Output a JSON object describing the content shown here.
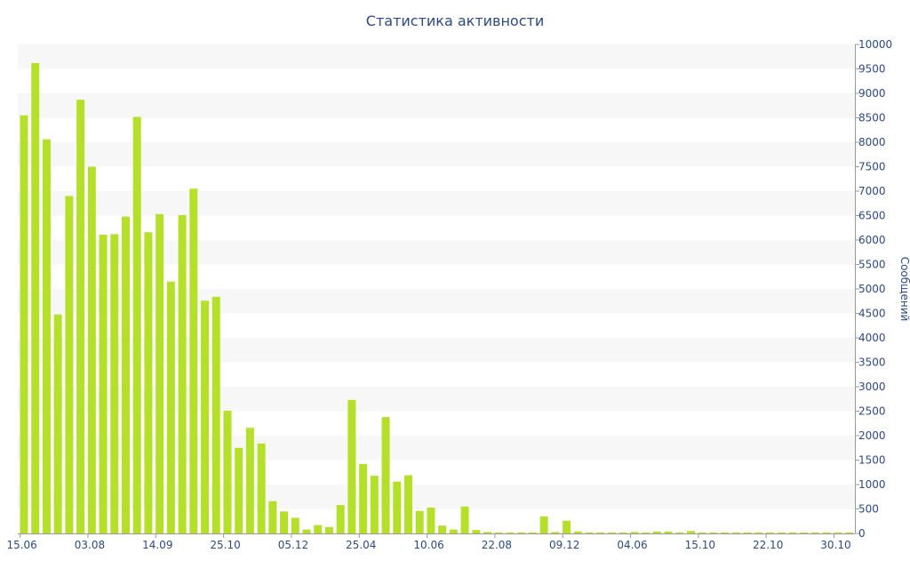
{
  "chart_data": {
    "type": "bar",
    "title": "Статистика активности",
    "ylabel": "Сообщений",
    "ylim": [
      0,
      10000
    ],
    "y_ticks": [
      0,
      500,
      1000,
      1500,
      2000,
      2500,
      3000,
      3500,
      4000,
      4500,
      5000,
      5500,
      6000,
      6500,
      7000,
      7500,
      8000,
      8500,
      9000,
      9500,
      10000
    ],
    "x_tick_labels": [
      "15.06",
      "03.08",
      "14.09",
      "25.10",
      "05.12",
      "25.04",
      "10.06",
      "22.08",
      "09.12",
      "04.06",
      "15.10",
      "22.10",
      "30.10"
    ],
    "x_tick_positions": [
      0,
      6,
      12,
      18,
      24,
      30,
      36,
      42,
      48,
      54,
      60,
      66,
      72
    ],
    "grid": "horizontal bands",
    "y_axis_position": "right",
    "bar_color": "#b5e02a",
    "band_color": "#f7f7f7",
    "text_color": "#2b4a86",
    "values": [
      8550,
      9620,
      8060,
      4480,
      6900,
      8870,
      7500,
      6110,
      6120,
      6480,
      8520,
      6160,
      6530,
      5150,
      6510,
      7050,
      4760,
      4840,
      2510,
      1750,
      2160,
      1840,
      660,
      450,
      320,
      80,
      170,
      130,
      580,
      2730,
      1420,
      1180,
      2380,
      1060,
      1190,
      460,
      530,
      160,
      80,
      550,
      70,
      30,
      20,
      20,
      20,
      20,
      350,
      30,
      260,
      40,
      20,
      20,
      20,
      20,
      30,
      20,
      40,
      40,
      20,
      50,
      20,
      20,
      20,
      20,
      20,
      20,
      20,
      20,
      20,
      20,
      20,
      20,
      20,
      20
    ]
  }
}
